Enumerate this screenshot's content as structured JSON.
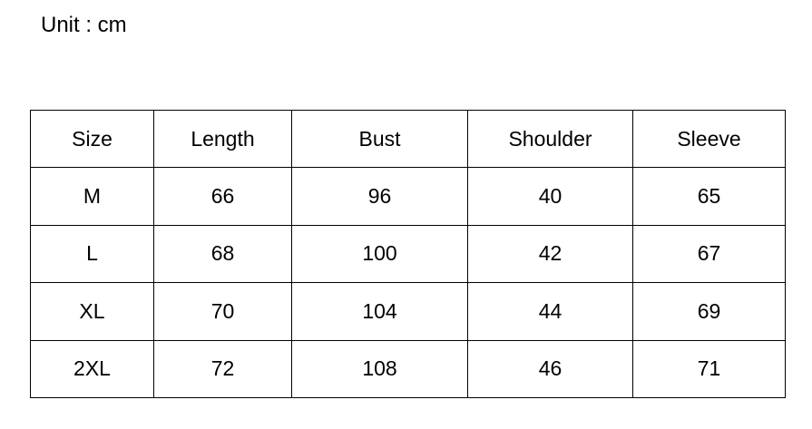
{
  "unit_label": "Unit : cm",
  "table": {
    "headers": [
      "Size",
      "Length",
      "Bust",
      "Shoulder",
      "Sleeve"
    ],
    "rows": [
      [
        "M",
        "66",
        "96",
        "40",
        "65"
      ],
      [
        "L",
        "68",
        "100",
        "42",
        "67"
      ],
      [
        "XL",
        "70",
        "104",
        "44",
        "69"
      ],
      [
        "2XL",
        "72",
        "108",
        "46",
        "71"
      ]
    ]
  }
}
